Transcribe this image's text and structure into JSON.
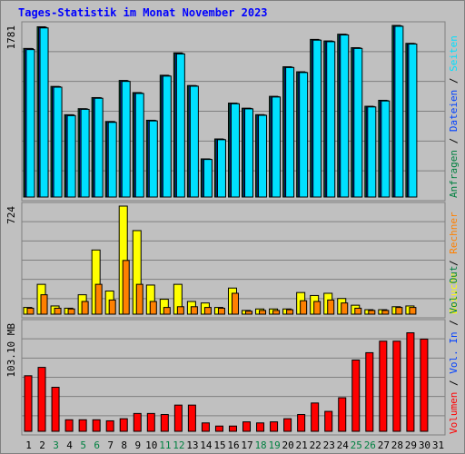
{
  "title": "Tages-Statistik im Monat November 2023",
  "colors": {
    "title": "#0000ff",
    "hits": "#008040",
    "files": "#0040ff",
    "pages": "#00e0ff",
    "visits": "#ffff00",
    "sites": "#ff8000",
    "kbytes": "#ff0000"
  },
  "chart_data": [
    {
      "type": "bar",
      "title": "",
      "ytick_label": "1781",
      "ymax": 1781,
      "categories": [
        "1",
        "2",
        "3",
        "4",
        "5",
        "6",
        "7",
        "8",
        "9",
        "10",
        "11",
        "12",
        "13",
        "14",
        "15",
        "16",
        "17",
        "18",
        "19",
        "20",
        "21",
        "22",
        "23",
        "24",
        "25",
        "26",
        "27",
        "28",
        "29",
        "30",
        "31"
      ],
      "category_colors": [
        "#000000",
        "#000000",
        "#008040",
        "#000000",
        "#008040",
        "#008040",
        "#000000",
        "#000000",
        "#000000",
        "#000000",
        "#008040",
        "#008040",
        "#000000",
        "#000000",
        "#000000",
        "#000000",
        "#000000",
        "#008040",
        "#008040",
        "#000000",
        "#000000",
        "#000000",
        "#000000",
        "#000000",
        "#008040",
        "#008040",
        "#000000",
        "#000000",
        "#000000",
        "#000000",
        "#000000"
      ],
      "legend": [
        {
          "label": "Anfragen",
          "color": "#008040"
        },
        {
          "label": "Dateien",
          "color": "#0040ff"
        },
        {
          "label": "Seiten",
          "color": "#00e0ff"
        }
      ],
      "series": [
        {
          "name": "Anfragen",
          "values": [
            1542,
            1767,
            1148,
            854,
            917,
            1032,
            784,
            1210,
            1084,
            797,
            1264,
            1496,
            1157,
            396,
            603,
            975,
            922,
            855,
            1045,
            1352,
            1300,
            1636,
            1620,
            1690,
            1550,
            942,
            1004,
            1781,
            1595,
            0,
            0
          ]
        },
        {
          "name": "Dateien",
          "values": [
            1540,
            1760,
            1145,
            852,
            914,
            1030,
            782,
            1205,
            1080,
            795,
            1260,
            1490,
            1155,
            394,
            600,
            972,
            920,
            852,
            1042,
            1348,
            1296,
            1632,
            1617,
            1687,
            1547,
            939,
            1001,
            1776,
            1592,
            0,
            0
          ]
        },
        {
          "name": "Seiten",
          "values": [
            1530,
            1755,
            1140,
            845,
            910,
            1025,
            775,
            1200,
            1075,
            790,
            1255,
            1485,
            1150,
            390,
            595,
            968,
            915,
            848,
            1038,
            1344,
            1292,
            1628,
            1612,
            1682,
            1542,
            935,
            997,
            1772,
            1588,
            0,
            0
          ]
        }
      ]
    },
    {
      "type": "bar",
      "title": "",
      "ytick_label": "724",
      "ymax": 724,
      "legend": [
        {
          "label": "Besuche",
          "color": "#ffff00"
        },
        {
          "label": "Rechner",
          "color": "#ff8000"
        }
      ],
      "series": [
        {
          "name": "Besuche",
          "values": [
            45,
            200,
            55,
            40,
            130,
            430,
            155,
            724,
            560,
            195,
            100,
            200,
            85,
            75,
            45,
            175,
            25,
            35,
            35,
            35,
            145,
            125,
            140,
            105,
            60,
            30,
            30,
            50,
            55,
            0,
            0
          ]
        },
        {
          "name": "Rechner",
          "values": [
            40,
            130,
            40,
            35,
            85,
            200,
            95,
            360,
            200,
            85,
            45,
            50,
            50,
            45,
            40,
            140,
            20,
            25,
            25,
            30,
            90,
            85,
            95,
            75,
            40,
            25,
            25,
            45,
            45,
            0,
            0
          ]
        }
      ]
    },
    {
      "type": "bar",
      "title": "",
      "ytick_label": "103.10 MB",
      "ymax": 103.1,
      "legend": [
        {
          "label": "Volumen",
          "color": "#ff0000"
        },
        {
          "label": "Vol. In",
          "color": "#0040ff"
        },
        {
          "label": "Vol. Out",
          "color": "#008040"
        }
      ],
      "series": [
        {
          "name": "Volumen",
          "values": [
            53,
            61,
            42,
            11,
            11,
            11,
            10,
            12,
            17,
            17,
            16,
            25,
            25,
            8,
            5,
            5,
            9,
            8,
            9,
            12,
            16,
            27,
            19,
            32,
            68,
            75,
            86,
            86,
            94,
            88,
            0
          ]
        }
      ]
    }
  ]
}
